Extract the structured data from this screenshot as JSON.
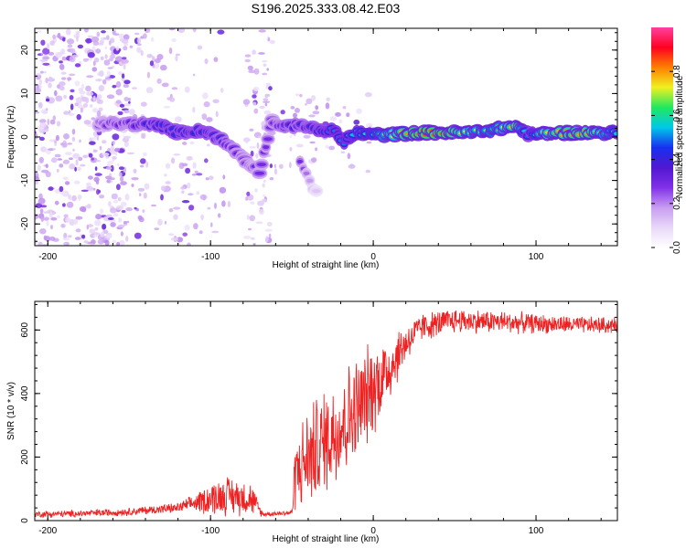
{
  "title": "S196.2025.333.08.42.E03",
  "chart_data": [
    {
      "type": "heatmap",
      "xlabel": "Height of straight line (km)",
      "ylabel": "Frequency (Hz)",
      "xlim": [
        -208,
        150
      ],
      "ylim": [
        -25,
        25
      ],
      "xticks": [
        -200,
        -100,
        0,
        100
      ],
      "xtick_labels": [
        "-200",
        "-100",
        "0",
        "100"
      ],
      "yticks": [
        -20,
        -10,
        0,
        10,
        20
      ],
      "ytick_labels": [
        "-20",
        "-10",
        "0",
        "10",
        "20"
      ],
      "colorbar": {
        "label": "Normalized spectral amplitude",
        "range": [
          0,
          1
        ],
        "ticks": [
          0,
          0.2,
          0.4,
          0.6,
          0.8
        ],
        "tick_labels": [
          "0.0",
          "0.2",
          "0.4",
          "0.6",
          "0.8"
        ],
        "colormap": [
          "#ffffff",
          "#e8d8f8",
          "#c89cf0",
          "#8030e8",
          "#5018d0",
          "#1830f0",
          "#00c8e8",
          "#20e860",
          "#f0f020",
          "#ff8000",
          "#ff0020",
          "#ff40a0"
        ]
      },
      "signal_track": [
        {
          "x": -170,
          "f": 3.0,
          "a": 0.25
        },
        {
          "x": -160,
          "f": 3.0,
          "a": 0.35
        },
        {
          "x": -150,
          "f": 3.0,
          "a": 0.35
        },
        {
          "x": -140,
          "f": 3.0,
          "a": 0.4
        },
        {
          "x": -130,
          "f": 2.5,
          "a": 0.45
        },
        {
          "x": -120,
          "f": 1.0,
          "a": 0.45
        },
        {
          "x": -110,
          "f": 1.5,
          "a": 0.45
        },
        {
          "x": -100,
          "f": 1.0,
          "a": 0.45
        },
        {
          "x": -92,
          "f": -1.0,
          "a": 0.4
        },
        {
          "x": -85,
          "f": -3.0,
          "a": 0.35
        },
        {
          "x": -78,
          "f": -5.5,
          "a": 0.3
        },
        {
          "x": -70,
          "f": -8.0,
          "a": 0.3
        },
        {
          "x": -62,
          "f": 4.0,
          "a": 0.3
        },
        {
          "x": -55,
          "f": 2.0,
          "a": 0.4
        },
        {
          "x": -45,
          "f": 3.0,
          "a": 0.4
        },
        {
          "x": -35,
          "f": 1.5,
          "a": 0.45
        },
        {
          "x": -25,
          "f": 1.5,
          "a": 0.5
        },
        {
          "x": -18,
          "f": -1.0,
          "a": 0.5
        },
        {
          "x": -10,
          "f": 1.0,
          "a": 0.55
        },
        {
          "x": 0,
          "f": 0.5,
          "a": 0.6
        },
        {
          "x": 10,
          "f": 0.5,
          "a": 0.7
        },
        {
          "x": 20,
          "f": 0.8,
          "a": 0.8
        },
        {
          "x": 30,
          "f": 1.0,
          "a": 0.85
        },
        {
          "x": 45,
          "f": 1.0,
          "a": 0.85
        },
        {
          "x": 60,
          "f": 1.0,
          "a": 0.7
        },
        {
          "x": 75,
          "f": 1.8,
          "a": 0.65
        },
        {
          "x": 88,
          "f": 2.5,
          "a": 0.8
        },
        {
          "x": 96,
          "f": 0.5,
          "a": 0.45
        },
        {
          "x": 105,
          "f": 0.8,
          "a": 0.75
        },
        {
          "x": 120,
          "f": 1.0,
          "a": 0.8
        },
        {
          "x": 135,
          "f": 1.0,
          "a": 0.8
        },
        {
          "x": 150,
          "f": 1.0,
          "a": 0.55
        }
      ],
      "branch_track": [
        {
          "x": -45,
          "f": -6.0,
          "a": 0.3
        },
        {
          "x": -40,
          "f": -9.0,
          "a": 0.2
        },
        {
          "x": -35,
          "f": -13.0,
          "a": 0.12
        }
      ],
      "noise_regions": [
        {
          "x": [
            -208,
            -150
          ],
          "f": [
            -25,
            25
          ],
          "density": 0.9
        },
        {
          "x": [
            -150,
            -100
          ],
          "f": [
            -25,
            25
          ],
          "density": 0.3
        },
        {
          "x": [
            -100,
            -85
          ],
          "f": [
            -25,
            25
          ],
          "density": 0.1
        },
        {
          "x": [
            -78,
            -62
          ],
          "f": [
            -25,
            25
          ],
          "density": 0.6
        },
        {
          "x": [
            -62,
            0
          ],
          "f": [
            -8,
            10
          ],
          "density": 0.3
        }
      ]
    },
    {
      "type": "line",
      "xlabel": "Height of straight line (km)",
      "ylabel": "SNR (10 * v/v)",
      "xlim": [
        -208,
        150
      ],
      "ylim": [
        0,
        690
      ],
      "xticks": [
        -200,
        -100,
        0,
        100
      ],
      "xtick_labels": [
        "-200",
        "-100",
        "0",
        "100"
      ],
      "yticks": [
        0,
        200,
        400,
        600
      ],
      "ytick_labels": [
        "0",
        "200",
        "400",
        "600"
      ],
      "line_color": "#ee2222",
      "trend": [
        {
          "x": -208,
          "base": 20,
          "amp": 12
        },
        {
          "x": -180,
          "base": 22,
          "amp": 12
        },
        {
          "x": -150,
          "base": 28,
          "amp": 14
        },
        {
          "x": -120,
          "base": 40,
          "amp": 18
        },
        {
          "x": -110,
          "base": 55,
          "amp": 30
        },
        {
          "x": -100,
          "base": 70,
          "amp": 60
        },
        {
          "x": -90,
          "base": 80,
          "amp": 70
        },
        {
          "x": -75,
          "base": 70,
          "amp": 60
        },
        {
          "x": -68,
          "base": 20,
          "amp": 8
        },
        {
          "x": -50,
          "base": 25,
          "amp": 10
        },
        {
          "x": -48,
          "base": 150,
          "amp": 130
        },
        {
          "x": -40,
          "base": 200,
          "amp": 180
        },
        {
          "x": -30,
          "base": 250,
          "amp": 190
        },
        {
          "x": -20,
          "base": 300,
          "amp": 200
        },
        {
          "x": -10,
          "base": 350,
          "amp": 190
        },
        {
          "x": 0,
          "base": 420,
          "amp": 170
        },
        {
          "x": 10,
          "base": 480,
          "amp": 120
        },
        {
          "x": 20,
          "base": 560,
          "amp": 70
        },
        {
          "x": 30,
          "base": 610,
          "amp": 50
        },
        {
          "x": 50,
          "base": 630,
          "amp": 45
        },
        {
          "x": 80,
          "base": 625,
          "amp": 40
        },
        {
          "x": 100,
          "base": 620,
          "amp": 35
        },
        {
          "x": 130,
          "base": 615,
          "amp": 30
        },
        {
          "x": 150,
          "base": 615,
          "amp": 30
        }
      ]
    }
  ]
}
